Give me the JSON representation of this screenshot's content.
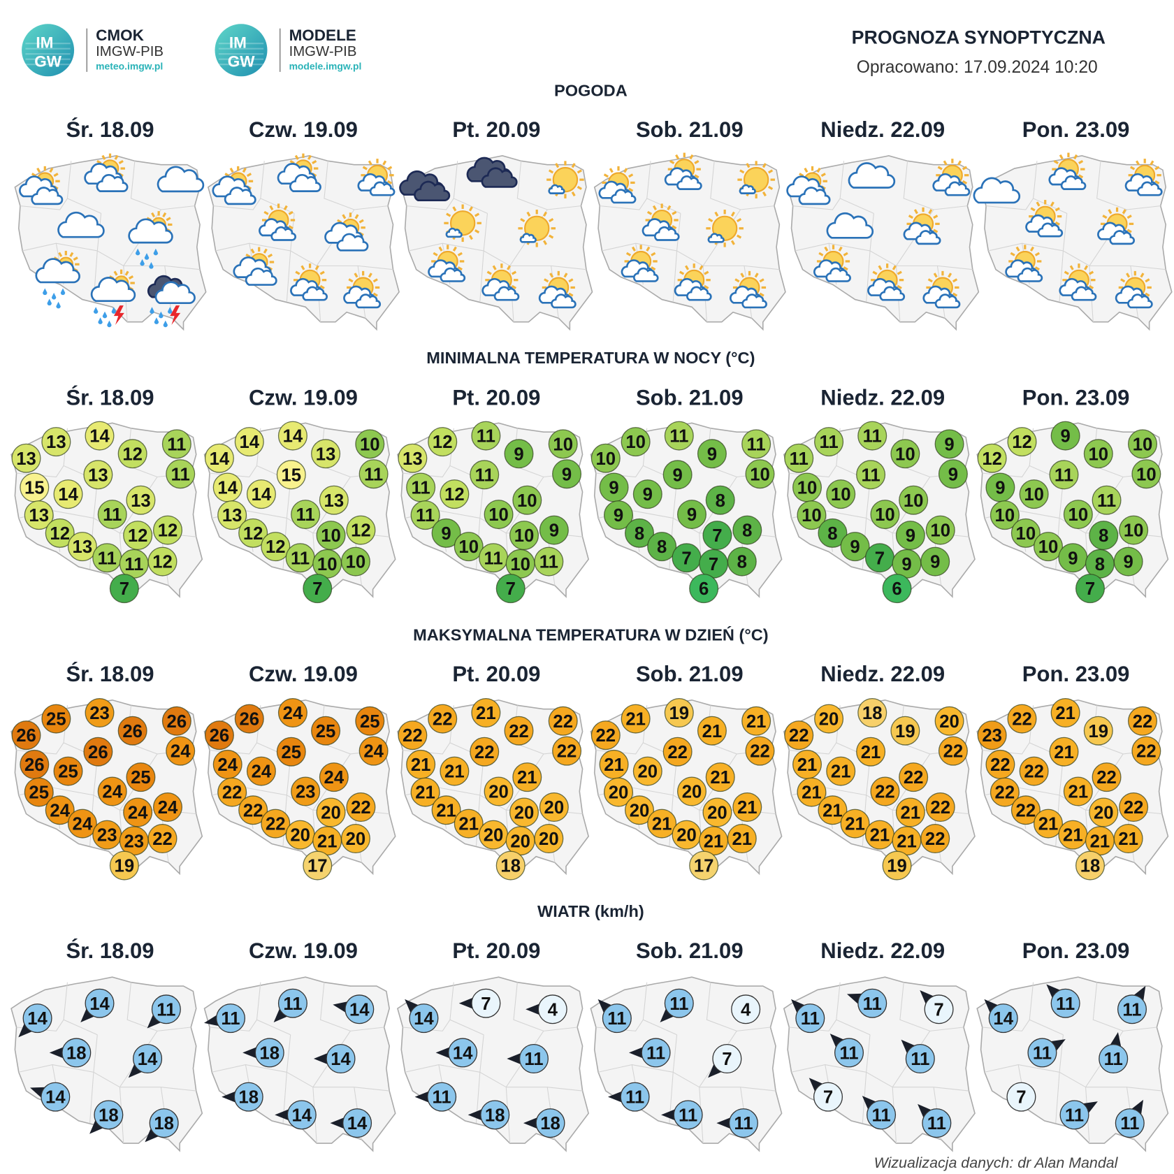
{
  "header": {
    "logos": [
      {
        "badge": [
          "IM",
          "GW"
        ],
        "name": "CMOK",
        "org": "IMGW-PIB",
        "site": "meteo.imgw.pl"
      },
      {
        "badge": [
          "IM",
          "GW"
        ],
        "name": "MODELE",
        "org": "IMGW-PIB",
        "site": "modele.imgw.pl"
      }
    ],
    "title": "PROGNOZA SYNOPTYCZNA",
    "issued": "Opracowano: 17.09.2024 10:20"
  },
  "days": [
    "Śr. 18.09",
    "Czw. 19.09",
    "Pt. 20.09",
    "Sob. 21.09",
    "Niedz. 22.09",
    "Pon. 23.09"
  ],
  "weather": {
    "title": "POGODA"
  },
  "min_temp": {
    "title": "MINIMALNA TEMPERATURA W NOCY (°C)",
    "values": [
      [
        13,
        14,
        13,
        12,
        11,
        11,
        15,
        14,
        13,
        13,
        13,
        11,
        12,
        12,
        12,
        13,
        11,
        11,
        12,
        7
      ],
      [
        14,
        14,
        14,
        13,
        10,
        11,
        14,
        14,
        15,
        13,
        13,
        11,
        12,
        10,
        12,
        12,
        11,
        10,
        10,
        7
      ],
      [
        12,
        11,
        13,
        9,
        10,
        9,
        11,
        12,
        11,
        10,
        11,
        10,
        9,
        10,
        9,
        10,
        11,
        10,
        11,
        7
      ],
      [
        10,
        11,
        10,
        9,
        11,
        10,
        9,
        9,
        9,
        8,
        9,
        9,
        8,
        7,
        8,
        8,
        7,
        7,
        8,
        6
      ],
      [
        11,
        11,
        11,
        10,
        9,
        9,
        10,
        10,
        11,
        10,
        10,
        10,
        8,
        9,
        10,
        9,
        7,
        9,
        9,
        6
      ],
      [
        12,
        9,
        12,
        10,
        10,
        10,
        9,
        10,
        11,
        11,
        10,
        10,
        10,
        8,
        10,
        10,
        9,
        8,
        9,
        7
      ]
    ]
  },
  "max_temp": {
    "title": "MAKSYMALNA TEMPERATURA W DZIEŃ (°C)",
    "values": [
      [
        25,
        23,
        26,
        26,
        26,
        24,
        26,
        25,
        26,
        25,
        25,
        24,
        24,
        24,
        24,
        24,
        23,
        23,
        22,
        19
      ],
      [
        26,
        24,
        26,
        25,
        25,
        24,
        24,
        24,
        25,
        24,
        22,
        23,
        22,
        20,
        22,
        22,
        20,
        21,
        20,
        17
      ],
      [
        22,
        21,
        22,
        22,
        22,
        22,
        21,
        21,
        22,
        21,
        21,
        20,
        21,
        20,
        20,
        21,
        20,
        20,
        20,
        18
      ],
      [
        21,
        19,
        22,
        21,
        21,
        22,
        21,
        20,
        22,
        21,
        20,
        20,
        20,
        20,
        21,
        21,
        20,
        21,
        21,
        17
      ],
      [
        20,
        18,
        22,
        19,
        20,
        22,
        21,
        21,
        21,
        22,
        21,
        22,
        21,
        21,
        22,
        21,
        21,
        21,
        22,
        19
      ],
      [
        22,
        21,
        23,
        19,
        22,
        22,
        22,
        22,
        21,
        22,
        22,
        21,
        22,
        20,
        22,
        21,
        21,
        21,
        21,
        18
      ]
    ]
  },
  "wind": {
    "title": "WIATR (km/h)",
    "values": [
      [
        14,
        14,
        11,
        18,
        14,
        14,
        18,
        18
      ],
      [
        11,
        11,
        14,
        18,
        14,
        18,
        14,
        14
      ],
      [
        14,
        7,
        4,
        14,
        11,
        11,
        18,
        18
      ],
      [
        11,
        11,
        4,
        11,
        7,
        11,
        11,
        11
      ],
      [
        11,
        11,
        7,
        11,
        11,
        7,
        11,
        11
      ],
      [
        14,
        11,
        11,
        11,
        11,
        7,
        11,
        11
      ]
    ]
  },
  "credit": "Wizualizacja danych: dr Alan Mandal"
}
